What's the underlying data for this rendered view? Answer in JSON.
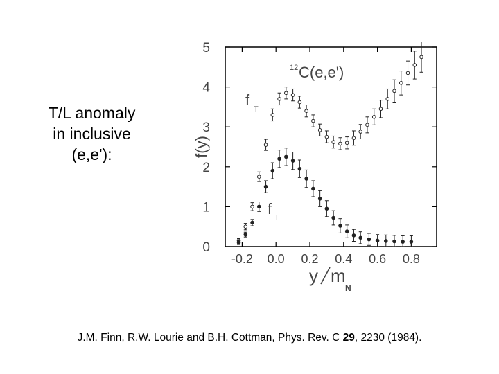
{
  "slide": {
    "lines": [
      "T/L anomaly",
      "in inclusive",
      "(e,e'):"
    ]
  },
  "citation": {
    "prefix": "J.M. Finn, R.W. Lourie and B.H. Cottman,  Phys. Rev. C ",
    "volume": "29",
    "suffix": ", 2230 (1984)."
  },
  "chart_data": {
    "type": "scatter",
    "title": "",
    "annotation_nucleus": "C(e,e')",
    "annotation_mass_number": "12",
    "xlabel_main": "y",
    "xlabel_denominator": "m",
    "xlabel_sub": "N",
    "ylabel": "f(y)",
    "xlim": [
      -0.3,
      0.95
    ],
    "ylim": [
      0,
      5
    ],
    "x_ticks": [
      -0.2,
      0.0,
      0.2,
      0.4,
      0.6,
      0.8
    ],
    "x_tick_labels": [
      "-0.2",
      "0.0",
      "0.2",
      "0.4",
      "0.6",
      "0.8"
    ],
    "y_ticks": [
      0,
      1,
      2,
      3,
      4,
      5
    ],
    "y_tick_labels": [
      "0",
      "1",
      "2",
      "3",
      "4",
      "5"
    ],
    "grid": false,
    "legend": "none",
    "series": [
      {
        "name": "T",
        "label_main": "f",
        "label_sub": "T",
        "marker": "open-circle",
        "x": [
          -0.22,
          -0.18,
          -0.14,
          -0.1,
          -0.06,
          -0.02,
          0.02,
          0.06,
          0.1,
          0.14,
          0.18,
          0.22,
          0.26,
          0.3,
          0.34,
          0.38,
          0.42,
          0.46,
          0.5,
          0.54,
          0.58,
          0.62,
          0.66,
          0.7,
          0.74,
          0.78,
          0.82,
          0.86
        ],
        "y": [
          0.15,
          0.5,
          1.0,
          1.75,
          2.55,
          3.3,
          3.7,
          3.85,
          3.8,
          3.62,
          3.4,
          3.15,
          2.92,
          2.75,
          2.62,
          2.58,
          2.6,
          2.72,
          2.88,
          3.05,
          3.25,
          3.45,
          3.7,
          3.9,
          4.1,
          4.35,
          4.55,
          4.75
        ],
        "err": [
          0.05,
          0.08,
          0.1,
          0.12,
          0.14,
          0.15,
          0.15,
          0.15,
          0.15,
          0.15,
          0.15,
          0.15,
          0.15,
          0.15,
          0.15,
          0.15,
          0.15,
          0.18,
          0.18,
          0.2,
          0.2,
          0.22,
          0.25,
          0.28,
          0.3,
          0.3,
          0.35,
          0.38
        ]
      },
      {
        "name": "L",
        "label_main": "f",
        "label_sub": "L",
        "marker": "filled-circle",
        "x": [
          -0.22,
          -0.18,
          -0.14,
          -0.1,
          -0.06,
          -0.02,
          0.02,
          0.06,
          0.1,
          0.14,
          0.18,
          0.22,
          0.26,
          0.3,
          0.34,
          0.38,
          0.42,
          0.46,
          0.5,
          0.55,
          0.6,
          0.65,
          0.7,
          0.75,
          0.8
        ],
        "y": [
          0.1,
          0.3,
          0.6,
          1.0,
          1.5,
          1.9,
          2.2,
          2.25,
          2.15,
          1.95,
          1.7,
          1.45,
          1.2,
          0.95,
          0.72,
          0.52,
          0.38,
          0.28,
          0.22,
          0.18,
          0.15,
          0.14,
          0.13,
          0.12,
          0.12
        ],
        "err": [
          0.05,
          0.06,
          0.08,
          0.12,
          0.15,
          0.2,
          0.22,
          0.22,
          0.22,
          0.22,
          0.22,
          0.2,
          0.2,
          0.2,
          0.18,
          0.18,
          0.16,
          0.15,
          0.15,
          0.15,
          0.15,
          0.15,
          0.15,
          0.15,
          0.15
        ]
      }
    ]
  }
}
